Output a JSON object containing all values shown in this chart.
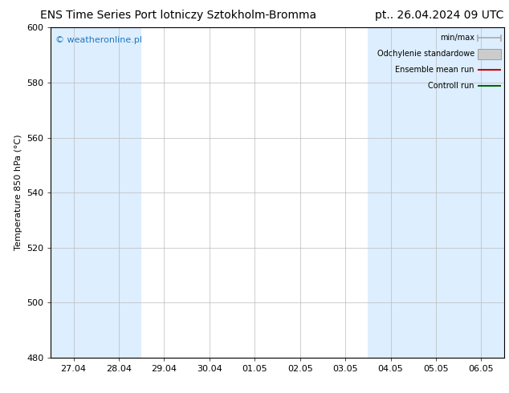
{
  "title": "ENS Time Series Port lotniczy Sztokholm-Bromma",
  "title_right": "pt.. 26.04.2024 09 UTC",
  "ylabel": "Temperature 850 hPa (°C)",
  "x_labels": [
    "27.04",
    "28.04",
    "29.04",
    "30.04",
    "01.05",
    "02.05",
    "03.05",
    "04.05",
    "05.05",
    "06.05"
  ],
  "ylim": [
    480,
    600
  ],
  "yticks": [
    480,
    500,
    520,
    540,
    560,
    580,
    600
  ],
  "shaded_indices": [
    0,
    1,
    7,
    8,
    9
  ],
  "shaded_color": "#ddeeff",
  "watermark": "© weatheronline.pl",
  "watermark_color": "#2277bb",
  "legend_items": [
    {
      "label": "min/max",
      "color": "#aaaaaa",
      "style": "errorbar"
    },
    {
      "label": "Odchylenie standardowe",
      "color": "#cccccc",
      "style": "box"
    },
    {
      "label": "Ensemble mean run",
      "color": "#cc0000",
      "style": "line"
    },
    {
      "label": "Controll run",
      "color": "#006600",
      "style": "line"
    }
  ],
  "background_color": "#ffffff",
  "plot_bg_color": "#ffffff",
  "grid_color": "#bbbbbb",
  "title_fontsize": 10,
  "tick_fontsize": 8,
  "ylabel_fontsize": 8
}
